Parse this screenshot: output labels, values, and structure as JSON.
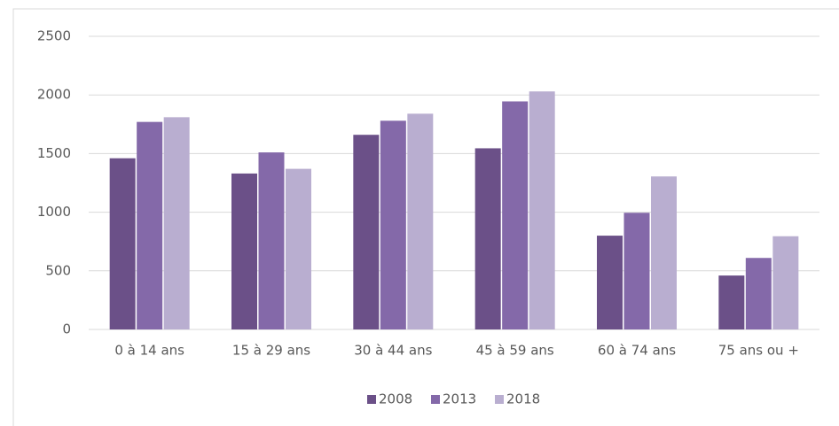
{
  "chart_data": {
    "type": "bar",
    "categories": [
      "0 à 14 ans",
      "15 à 29 ans",
      "30 à 44 ans",
      "45 à 59 ans",
      "60 à 74 ans",
      "75 ans ou +"
    ],
    "series": [
      {
        "name": "2008",
        "color": "#6b5088",
        "values": [
          1460,
          1330,
          1660,
          1545,
          800,
          460
        ]
      },
      {
        "name": "2013",
        "color": "#8469a9",
        "values": [
          1770,
          1510,
          1780,
          1945,
          995,
          610
        ]
      },
      {
        "name": "2018",
        "color": "#b9aed0",
        "values": [
          1810,
          1370,
          1840,
          2030,
          1305,
          795
        ]
      }
    ],
    "ylim": [
      0,
      2500
    ],
    "yticks": [
      0,
      500,
      1000,
      1500,
      2000,
      2500
    ],
    "grid": true,
    "legend": "bottom"
  }
}
